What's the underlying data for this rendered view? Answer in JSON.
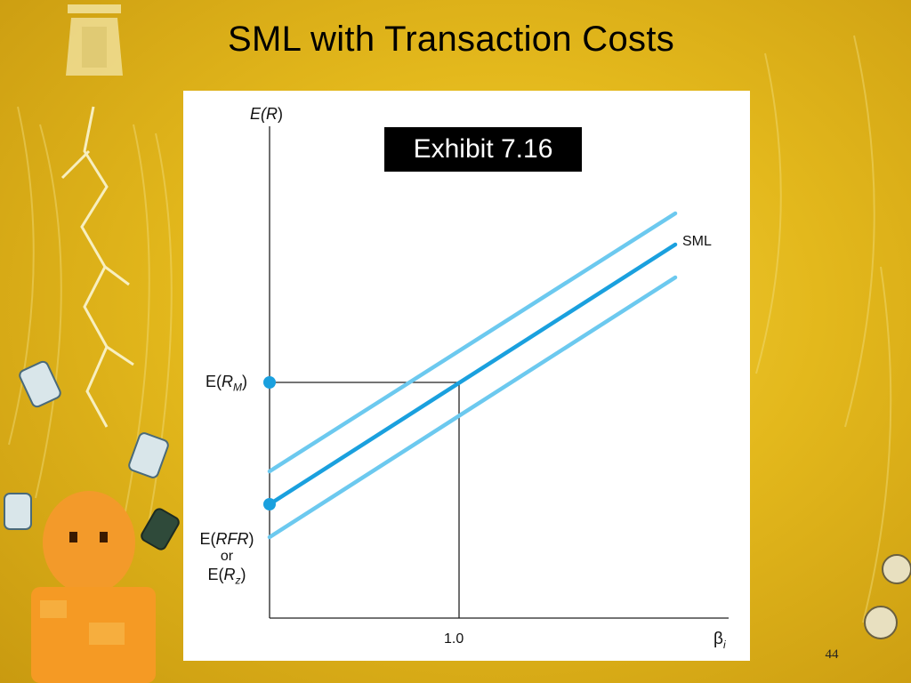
{
  "slide": {
    "title": "SML with Transaction Costs",
    "page_number": "44"
  },
  "exhibit_label": "Exhibit 7.16",
  "colors": {
    "sml": "#1aa0de",
    "band": "#6cc9ef",
    "marker": "#1aa0de",
    "axis": "#222222"
  },
  "diagram": {
    "y_axis_label": {
      "prefix": "E(",
      "var": "R",
      "suffix": ")"
    },
    "x_axis_label": {
      "symbol": "β",
      "sub": "i"
    },
    "x_tick": "1.0",
    "line_label": "SML",
    "market_label": {
      "prefix": "E(",
      "var": "R",
      "sub": "M",
      "suffix": ")"
    },
    "rfr_label": {
      "line1_prefix": "E(",
      "line1_var": "RFR",
      "line1_suffix": ")",
      "line2": "or",
      "line3_prefix": "E(",
      "line3_var": "R",
      "line3_sub": "z",
      "line3_suffix": ")"
    },
    "lines": [
      {
        "name": "upper-band",
        "kind": "band"
      },
      {
        "name": "sml",
        "kind": "sml"
      },
      {
        "name": "lower-band",
        "kind": "band"
      }
    ]
  }
}
